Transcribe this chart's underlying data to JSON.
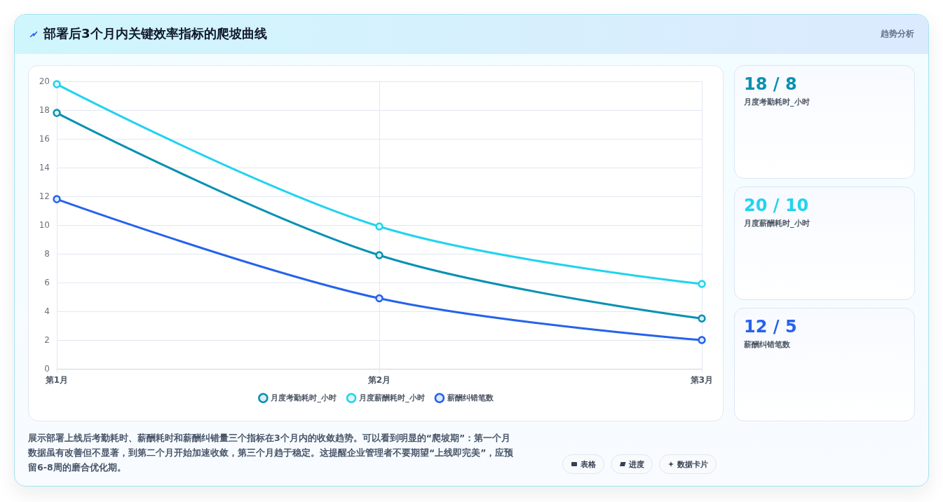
{
  "chart_data": {
    "type": "line",
    "title": "部署后3个月内关键效率指标的爬坡曲线",
    "subtitle": "趋势分析",
    "categories": [
      "第1月",
      "第2月",
      "第3月"
    ],
    "series": [
      {
        "name": "月度考勤耗时_小时",
        "color": "#0891b2",
        "values": [
          17.8,
          7.9,
          3.5
        ]
      },
      {
        "name": "月度薪酬耗时_小时",
        "color": "#22d3ee",
        "values": [
          19.8,
          9.9,
          5.9
        ]
      },
      {
        "name": "薪酬纠错笔数",
        "color": "#2563eb",
        "values": [
          11.8,
          4.9,
          2.0
        ]
      }
    ],
    "ylim": [
      0,
      20
    ],
    "yticks": [
      0,
      2,
      4,
      6,
      8,
      10,
      12,
      14,
      16,
      18,
      20
    ],
    "grid": true,
    "legend": "bottom",
    "marker": "circle",
    "line_style": "solid",
    "annotations": [
      "18 / 8",
      "月度考勤耗时_小时",
      "20 / 10",
      "月度薪酬耗时_小时",
      "12 / 5",
      "薪酬纠错笔数",
      "展示部署上线后考勤耗时、薪酬耗时和薪酬纠错量三个指标在3个月内的收敛趋势。可以看到明显的“爬坡期”：第一个月数据虽有改善但不显著，到第二个月开始加速收敛，第三个月趋于稳定。这提醒企业管理者不要期望“上线即完美”，应预留6-8周的磨合优化期。",
      "表格",
      "进度",
      "数据卡片"
    ]
  }
}
